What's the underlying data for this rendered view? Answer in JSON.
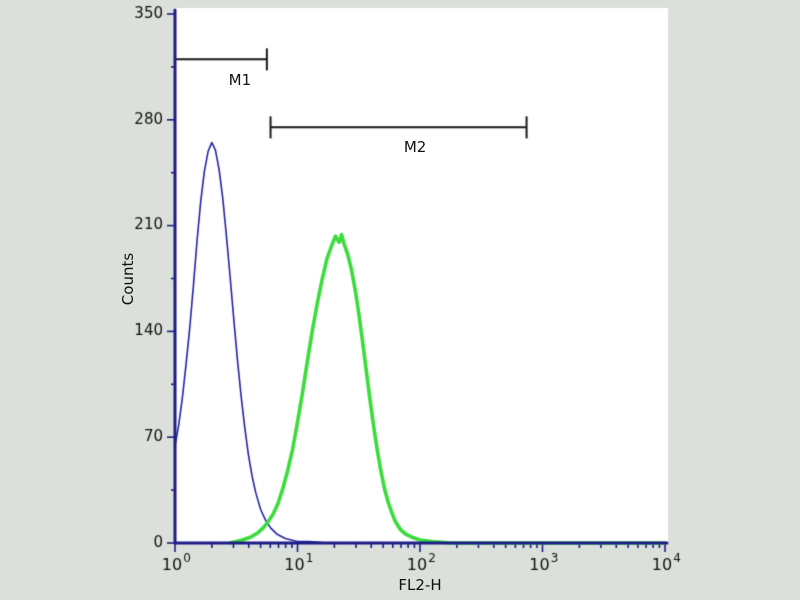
{
  "chart_data": {
    "type": "line",
    "title": "",
    "xlabel": "FL2-H",
    "ylabel": "Counts",
    "x_scale": "log10",
    "x_decades": [
      0,
      4
    ],
    "x_tick_base": "10",
    "x_tick_exponents": [
      "0",
      "1",
      "2",
      "3",
      "4"
    ],
    "ylim": [
      0,
      350
    ],
    "y_ticks": [
      0,
      70,
      140,
      210,
      280,
      350
    ],
    "grid": false,
    "legend_position": "none",
    "colors": {
      "page_background": "#dbe0db",
      "plot_background": "#ffffff",
      "axis": "#1c1c86",
      "blue_series": "#2525a8",
      "green_series": "#3bdc3b",
      "marker": "#1a1a1a",
      "text": "#111111"
    },
    "series": [
      {
        "name": "blue-control-histogram",
        "color_key": "blue_series",
        "line_width": 1.6,
        "points_logx_counts": [
          [
            0.0,
            64
          ],
          [
            0.03,
            78
          ],
          [
            0.06,
            96
          ],
          [
            0.09,
            118
          ],
          [
            0.12,
            142
          ],
          [
            0.15,
            170
          ],
          [
            0.18,
            200
          ],
          [
            0.21,
            226
          ],
          [
            0.24,
            246
          ],
          [
            0.27,
            259
          ],
          [
            0.3,
            265
          ],
          [
            0.33,
            260
          ],
          [
            0.36,
            247
          ],
          [
            0.39,
            228
          ],
          [
            0.42,
            203
          ],
          [
            0.45,
            176
          ],
          [
            0.48,
            148
          ],
          [
            0.51,
            121
          ],
          [
            0.54,
            97
          ],
          [
            0.57,
            76
          ],
          [
            0.6,
            58
          ],
          [
            0.63,
            44
          ],
          [
            0.66,
            33
          ],
          [
            0.7,
            22
          ],
          [
            0.74,
            15
          ],
          [
            0.78,
            10
          ],
          [
            0.83,
            6
          ],
          [
            0.9,
            3
          ],
          [
            1.0,
            1
          ],
          [
            1.1,
            1
          ],
          [
            1.25,
            0
          ],
          [
            4.0,
            0
          ]
        ]
      },
      {
        "name": "green-sample-histogram",
        "color_key": "green_series",
        "line_width": 3.6,
        "points_logx_counts": [
          [
            0.45,
            0
          ],
          [
            0.55,
            2
          ],
          [
            0.62,
            4
          ],
          [
            0.68,
            7
          ],
          [
            0.72,
            10
          ],
          [
            0.76,
            14
          ],
          [
            0.8,
            19
          ],
          [
            0.84,
            26
          ],
          [
            0.88,
            36
          ],
          [
            0.92,
            48
          ],
          [
            0.96,
            62
          ],
          [
            1.0,
            80
          ],
          [
            1.04,
            99
          ],
          [
            1.08,
            120
          ],
          [
            1.12,
            140
          ],
          [
            1.16,
            158
          ],
          [
            1.2,
            174
          ],
          [
            1.24,
            188
          ],
          [
            1.28,
            197
          ],
          [
            1.31,
            203
          ],
          [
            1.34,
            199
          ],
          [
            1.36,
            204
          ],
          [
            1.38,
            198
          ],
          [
            1.41,
            191
          ],
          [
            1.44,
            181
          ],
          [
            1.47,
            168
          ],
          [
            1.5,
            152
          ],
          [
            1.53,
            134
          ],
          [
            1.56,
            115
          ],
          [
            1.59,
            96
          ],
          [
            1.62,
            78
          ],
          [
            1.65,
            62
          ],
          [
            1.68,
            48
          ],
          [
            1.71,
            36
          ],
          [
            1.74,
            27
          ],
          [
            1.77,
            20
          ],
          [
            1.8,
            14
          ],
          [
            1.84,
            9
          ],
          [
            1.88,
            6
          ],
          [
            1.93,
            4
          ],
          [
            2.0,
            2
          ],
          [
            2.1,
            1
          ],
          [
            2.25,
            0
          ],
          [
            4.0,
            0
          ]
        ]
      }
    ],
    "markers": [
      {
        "label": "M1",
        "logx_start": 0.0,
        "logx_end": 0.75,
        "y_counts": 320,
        "label_logx": 0.53,
        "label_y_counts": 312,
        "ends": "right"
      },
      {
        "label": "M2",
        "logx_start": 0.78,
        "logx_end": 2.87,
        "y_counts": 275,
        "label_logx": 1.96,
        "label_y_counts": 268,
        "ends": "both"
      }
    ]
  }
}
